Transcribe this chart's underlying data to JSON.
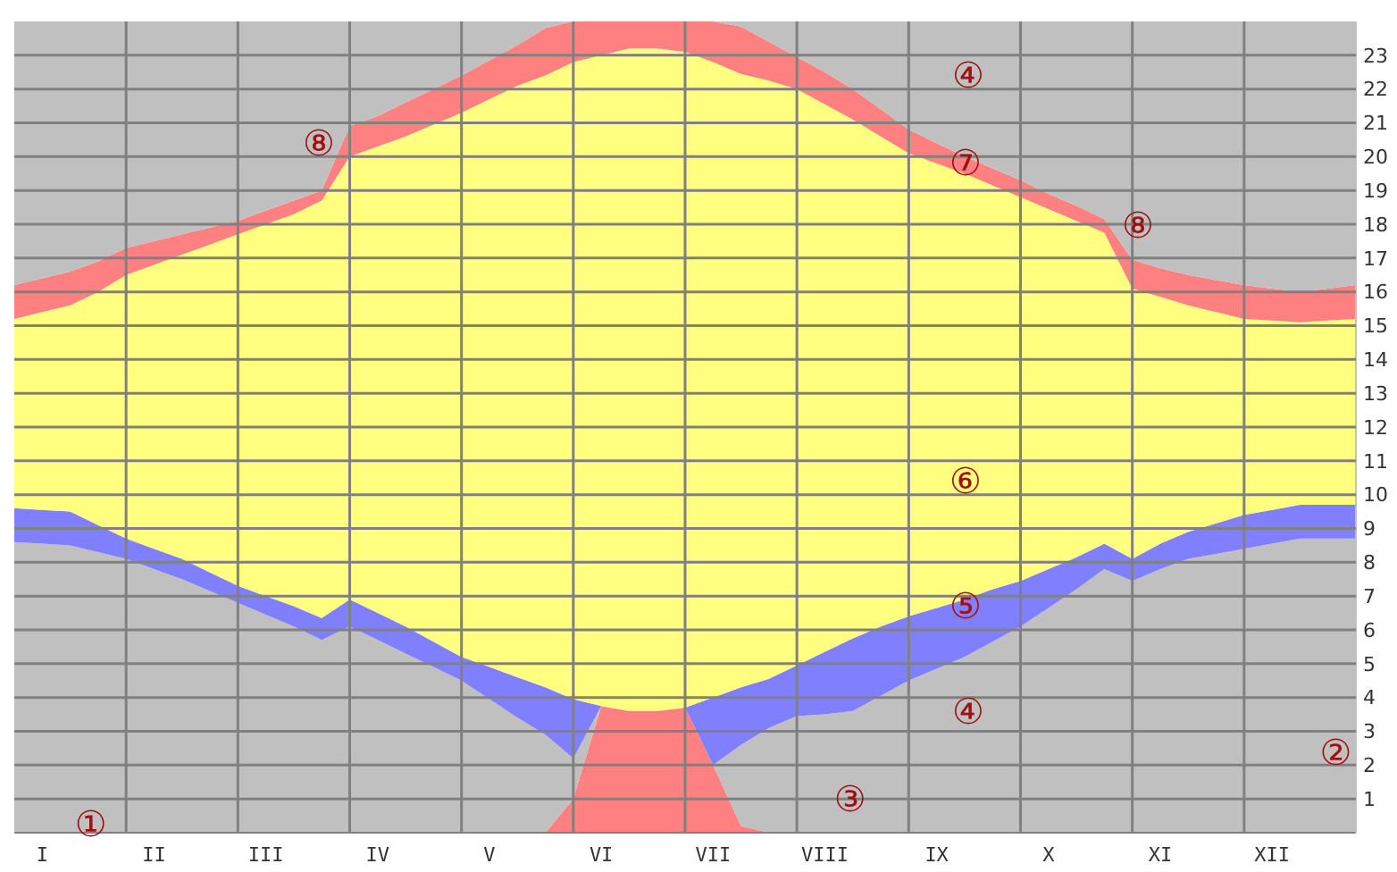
{
  "chart_data": {
    "type": "area",
    "stacked": true,
    "categories": [
      null,
      "I",
      null,
      null,
      null,
      "II",
      null,
      null,
      null,
      "III",
      null,
      null,
      null,
      "IV",
      null,
      null,
      null,
      "V",
      null,
      null,
      null,
      "VI",
      null,
      null,
      null,
      "VII",
      null,
      null,
      null,
      "VIII",
      null,
      null,
      null,
      "IX",
      null,
      null,
      null,
      "X",
      null,
      null,
      null,
      "XI",
      null,
      null,
      null,
      "XII",
      null,
      null,
      null
    ],
    "series": [
      {
        "color": "#ff8080",
        "values": [
          0,
          0,
          0,
          0,
          0,
          0,
          0,
          0,
          0,
          0,
          0,
          0,
          0,
          0,
          0,
          0,
          0,
          0,
          0,
          0,
          1.0,
          3.75,
          3.6,
          3.6,
          3.7,
          2.0,
          0.2,
          0,
          0,
          0,
          0,
          0,
          0,
          0,
          0,
          0,
          0,
          0,
          0,
          0,
          0,
          0,
          0,
          0,
          0,
          0,
          0,
          0,
          0
        ]
      },
      {
        "color": "#c0c0c0",
        "values": [
          8.6,
          8.55,
          8.5,
          8.3,
          8.1,
          7.8,
          7.5,
          7.15,
          6.8,
          6.45,
          6.1,
          5.7,
          6.1,
          5.7,
          5.3,
          4.9,
          4.5,
          3.95,
          3.4,
          2.9,
          1.2,
          0,
          0,
          0,
          0,
          0,
          2.4,
          3.1,
          3.45,
          3.5,
          3.6,
          4.05,
          4.5,
          4.85,
          5.2,
          5.65,
          6.1,
          6.65,
          7.2,
          7.8,
          7.45,
          7.8,
          8.1,
          8.25,
          8.4,
          8.55,
          8.7,
          8.7,
          8.7
        ]
      },
      {
        "color": "#8080ff",
        "values": [
          1.0,
          1.0,
          1.0,
          0.8,
          0.6,
          0.6,
          0.6,
          0.55,
          0.5,
          0.55,
          0.6,
          0.65,
          0.8,
          0.8,
          0.8,
          0.75,
          0.7,
          0.95,
          1.2,
          1.4,
          1.75,
          0,
          0,
          0,
          0,
          2.0,
          1.7,
          1.45,
          1.5,
          1.85,
          2.15,
          2.05,
          1.9,
          1.8,
          1.7,
          1.55,
          1.35,
          1.15,
          0.95,
          0.75,
          0.65,
          0.75,
          0.8,
          0.9,
          1.0,
          1.0,
          1.0,
          1.0,
          1.0
        ]
      },
      {
        "color": "#ffff80",
        "values": [
          5.6,
          5.85,
          6.1,
          6.9,
          7.8,
          8.4,
          9.0,
          9.7,
          10.4,
          11.0,
          11.6,
          12.35,
          13.1,
          13.8,
          14.5,
          15.3,
          16.1,
          16.8,
          17.5,
          18.1,
          18.85,
          19.25,
          19.6,
          19.6,
          19.4,
          18.8,
          18.15,
          17.7,
          17.05,
          16.2,
          15.35,
          14.5,
          13.7,
          13.15,
          12.6,
          11.95,
          11.35,
          10.65,
          9.95,
          9.2,
          8.0,
          7.3,
          6.7,
          6.25,
          5.8,
          5.6,
          5.4,
          5.45,
          5.5
        ]
      },
      {
        "color": "#ff8080",
        "values": [
          1.0,
          1.0,
          1.0,
          0.9,
          0.8,
          0.7,
          0.6,
          0.5,
          0.4,
          0.4,
          0.4,
          0.3,
          0.9,
          0.9,
          1.0,
          1.05,
          1.1,
          1.15,
          1.2,
          1.4,
          1.2,
          1.0,
          0.8,
          0.8,
          0.9,
          1.2,
          1.4,
          1.15,
          0.95,
          0.95,
          0.9,
          0.8,
          0.7,
          0.6,
          0.5,
          0.5,
          0.5,
          0.45,
          0.45,
          0.4,
          0.85,
          0.85,
          0.9,
          0.95,
          1.0,
          0.95,
          0.9,
          0.95,
          1.0
        ]
      },
      {
        "color": "#c0c0c0",
        "values": [
          7.8,
          7.6,
          7.4,
          7.1,
          6.7,
          6.5,
          6.3,
          6.1,
          5.9,
          5.6,
          5.3,
          5.0,
          3.1,
          2.8,
          2.4,
          2.0,
          1.6,
          1.15,
          0.7,
          0.2,
          0,
          0,
          0,
          0,
          0,
          0,
          0.15,
          0.6,
          1.05,
          1.5,
          2.0,
          2.6,
          3.2,
          3.6,
          4.0,
          4.35,
          4.7,
          5.1,
          5.45,
          5.85,
          7.05,
          7.3,
          7.5,
          7.65,
          7.8,
          7.9,
          8.0,
          7.9,
          7.8
        ]
      }
    ],
    "ylim": [
      0,
      24
    ],
    "yticks": [
      1,
      2,
      3,
      4,
      5,
      6,
      7,
      8,
      9,
      10,
      11,
      12,
      13,
      14,
      15,
      16,
      17,
      18,
      19,
      20,
      21,
      22,
      23
    ],
    "grid": true,
    "annotations": [
      "①",
      "②",
      "③",
      "④",
      "④",
      "⑤",
      "⑥",
      "⑦",
      "⑧",
      "⑧"
    ]
  }
}
